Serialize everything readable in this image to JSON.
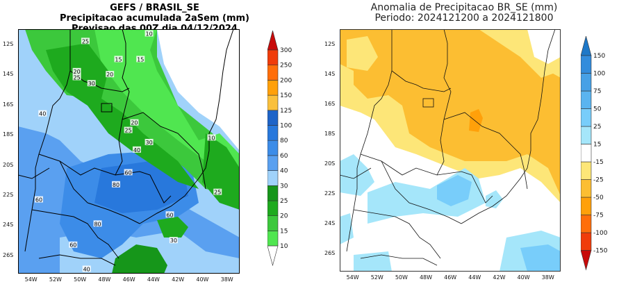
{
  "left_panel": {
    "title_line1": "GEFS / BRASIL_SE",
    "title_line2": "Precipitacao acumulada 2aSem (mm)",
    "title_line3": "Previsao das 00Z dia 04/12/2024",
    "y_ticks": [
      "12S",
      "14S",
      "16S",
      "18S",
      "20S",
      "22S",
      "24S",
      "26S"
    ],
    "x_ticks": [
      "54W",
      "52W",
      "50W",
      "48W",
      "46W",
      "44W",
      "42W",
      "40W",
      "38W"
    ],
    "contour_labels": [
      {
        "text": "25",
        "lon": -49.5,
        "lat": -11.8
      },
      {
        "text": "15",
        "lon": -46.8,
        "lat": -13.0
      },
      {
        "text": "15",
        "lon": -45.0,
        "lat": -13.0
      },
      {
        "text": "10",
        "lon": -44.3,
        "lat": -11.3
      },
      {
        "text": "20",
        "lon": -50.2,
        "lat": -13.8
      },
      {
        "text": "25",
        "lon": -50.2,
        "lat": -14.2
      },
      {
        "text": "20",
        "lon": -47.5,
        "lat": -14.0
      },
      {
        "text": "30",
        "lon": -49.0,
        "lat": -14.6
      },
      {
        "text": "40",
        "lon": -53.0,
        "lat": -16.6
      },
      {
        "text": "20",
        "lon": -45.5,
        "lat": -17.2
      },
      {
        "text": "25",
        "lon": -46.0,
        "lat": -17.7
      },
      {
        "text": "30",
        "lon": -44.3,
        "lat": -18.5
      },
      {
        "text": "40",
        "lon": -45.3,
        "lat": -19.0
      },
      {
        "text": "10",
        "lon": -39.2,
        "lat": -18.2
      },
      {
        "text": "60",
        "lon": -46.0,
        "lat": -20.5
      },
      {
        "text": "80",
        "lon": -47.0,
        "lat": -21.3
      },
      {
        "text": "60",
        "lon": -53.3,
        "lat": -22.3
      },
      {
        "text": "25",
        "lon": -38.7,
        "lat": -21.8
      },
      {
        "text": "60",
        "lon": -42.6,
        "lat": -23.3
      },
      {
        "text": "80",
        "lon": -48.5,
        "lat": -23.9
      },
      {
        "text": "30",
        "lon": -42.3,
        "lat": -25.0
      },
      {
        "text": "60",
        "lon": -50.5,
        "lat": -25.3
      },
      {
        "text": "40",
        "lon": -49.4,
        "lat": -26.9
      }
    ]
  },
  "right_panel": {
    "title_line1": "Anomalia de Precipitacao BR_SE (mm)",
    "title_line2": "Periodo: 2024121200 a 2024121800",
    "y_ticks": [
      "12S",
      "14S",
      "16S",
      "18S",
      "20S",
      "22S",
      "24S",
      "26S"
    ],
    "x_ticks": [
      "54W",
      "52W",
      "50W",
      "48W",
      "46W",
      "44W",
      "42W",
      "40W",
      "38W"
    ]
  },
  "colorbar_precip": {
    "levels": [
      "10",
      "15",
      "20",
      "25",
      "30",
      "40",
      "60",
      "80",
      "100",
      "125",
      "150",
      "200",
      "250",
      "300"
    ],
    "colors": [
      "#ffffff",
      "#50e650",
      "#3cc83c",
      "#1eaa1e",
      "#16961a",
      "#a0d2fa",
      "#5aa0f0",
      "#3c8ce8",
      "#2878dc",
      "#1e64c8",
      "#fac03c",
      "#ffa00a",
      "#ff6e0a",
      "#f03c0a",
      "#c80a0a"
    ]
  },
  "colorbar_anomaly": {
    "levels": [
      "-150",
      "-100",
      "-75",
      "-50",
      "-25",
      "-15",
      "15",
      "25",
      "50",
      "75",
      "100",
      "150"
    ],
    "colors": [
      "#c80a0a",
      "#f03c0a",
      "#ff6e0a",
      "#ffa00a",
      "#fcbe32",
      "#fde678",
      "#ffffff",
      "#a5e6fa",
      "#78cdfa",
      "#5ab4f0",
      "#46a0e6",
      "#328cdc",
      "#1e78c8"
    ]
  }
}
